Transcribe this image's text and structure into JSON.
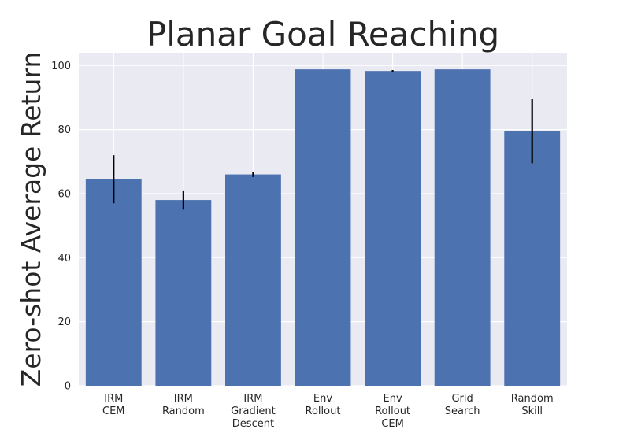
{
  "chart_data": {
    "type": "bar",
    "title": "Planar Goal Reaching",
    "xlabel": "",
    "ylabel": "Zero-shot Average Return",
    "ylim": [
      0,
      104
    ],
    "yticks": [
      0,
      20,
      40,
      60,
      80,
      100
    ],
    "grid": true,
    "categories": [
      [
        "IRM",
        "CEM"
      ],
      [
        "IRM",
        "Random"
      ],
      [
        "IRM",
        "Gradient",
        "Descent"
      ],
      [
        "Env",
        "Rollout"
      ],
      [
        "Env",
        "Rollout",
        "CEM"
      ],
      [
        "Grid",
        "Search"
      ],
      [
        "Random",
        "Skill"
      ]
    ],
    "values": [
      64.5,
      58.0,
      66.0,
      98.8,
      98.3,
      98.8,
      79.5
    ],
    "errors": [
      7.5,
      3.0,
      0.8,
      0.0,
      0.3,
      0.0,
      10.0
    ],
    "colors": {
      "bar": "#4c72b0",
      "plot_background": "#eaeaf2",
      "grid": "#ffffff",
      "error_bar": "#000000",
      "text": "#262626"
    }
  }
}
